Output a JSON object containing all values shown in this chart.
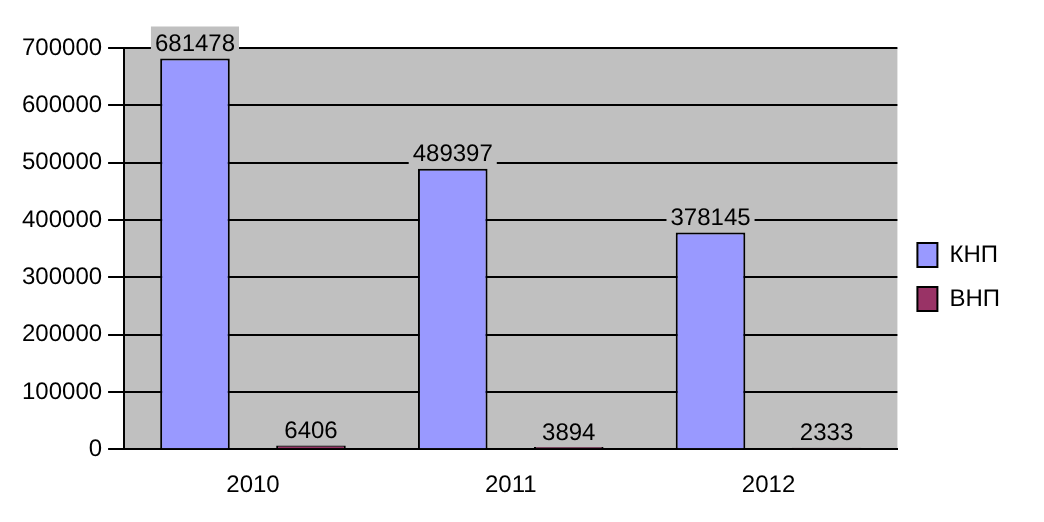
{
  "chart_data": {
    "type": "bar",
    "categories": [
      "2010",
      "2011",
      "2012"
    ],
    "series": [
      {
        "name": "КНП",
        "color": "#9999ff",
        "values": [
          681478,
          489397,
          378145
        ]
      },
      {
        "name": "ВНП",
        "color": "#993366",
        "values": [
          6406,
          3894,
          2333
        ]
      }
    ],
    "ylim": [
      0,
      700000
    ],
    "yticks": [
      0,
      100000,
      200000,
      300000,
      400000,
      500000,
      600000,
      700000
    ],
    "grid": "y",
    "legend": "right",
    "data_labels": true
  }
}
